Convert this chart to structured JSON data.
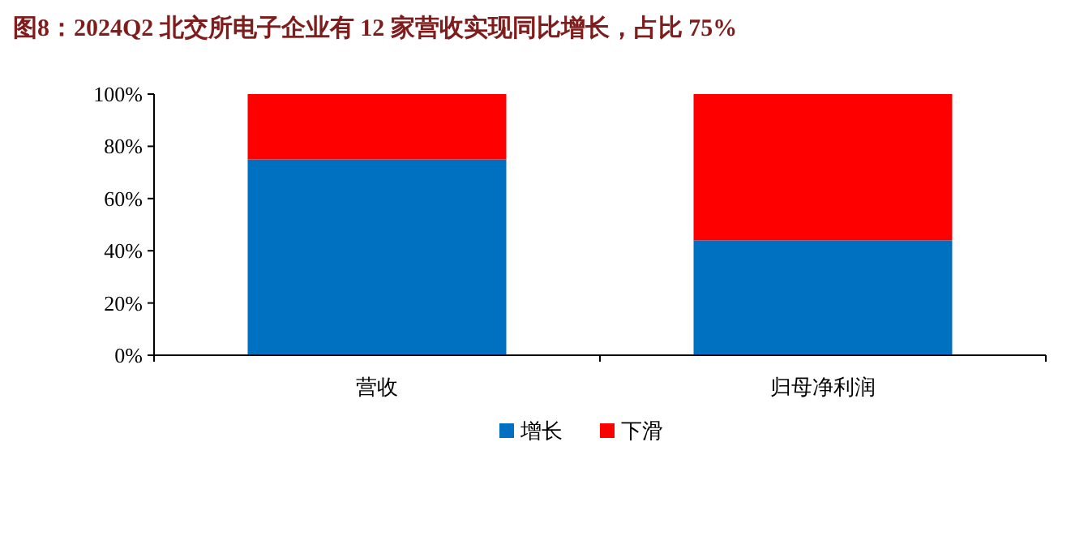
{
  "chart_data": {
    "type": "bar",
    "title": "图8：2024Q2 北交所电子企业有 12 家营收实现同比增长，占比 75%",
    "categories": [
      "营收",
      "归母净利润"
    ],
    "series": [
      {
        "name": "增长",
        "color": "#0070c0",
        "values": [
          75,
          44
        ]
      },
      {
        "name": "下滑",
        "color": "#ff0000",
        "values": [
          25,
          56
        ]
      }
    ],
    "stacked": true,
    "ylim": [
      0,
      100
    ],
    "yticks": [
      {
        "value": 0,
        "label": "0%"
      },
      {
        "value": 20,
        "label": "20%"
      },
      {
        "value": 40,
        "label": "40%"
      },
      {
        "value": 60,
        "label": "60%"
      },
      {
        "value": 80,
        "label": "80%"
      },
      {
        "value": 100,
        "label": "100%"
      }
    ],
    "legend": "bottom"
  }
}
